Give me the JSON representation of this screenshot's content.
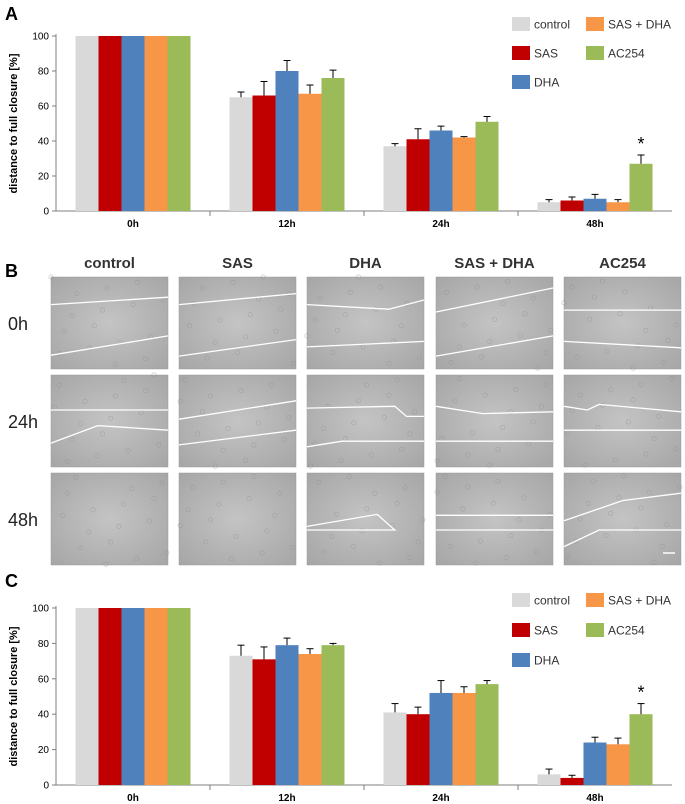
{
  "colors": {
    "control": "#d9d9d9",
    "SAS": "#c00000",
    "DHA": "#4f81bd",
    "SAS + DHA": "#f79646",
    "AC254": "#9bbb59",
    "axis": "#7f7f7f",
    "image_bg": "#b5b5b5",
    "wound_line": "#ffffff"
  },
  "panel_B": {
    "letter": "B",
    "columns": [
      "control",
      "SAS",
      "DHA",
      "SAS + DHA",
      "AC254"
    ],
    "rows": [
      "0h",
      "24h",
      "48h"
    ]
  },
  "chart_data": [
    {
      "panel": "A",
      "type": "bar",
      "ylabel": "distance to full closure [%]",
      "ylim": [
        0,
        100
      ],
      "yticks": [
        0,
        20,
        40,
        60,
        80,
        100
      ],
      "grid": false,
      "legend_placement": "top-right",
      "categories": [
        "0h",
        "12h",
        "24h",
        "48h"
      ],
      "series": [
        {
          "name": "control",
          "values": [
            100,
            65,
            37,
            5
          ],
          "errors": [
            0,
            3,
            1.5,
            1.5
          ]
        },
        {
          "name": "SAS",
          "values": [
            100,
            66,
            41,
            6
          ],
          "errors": [
            0,
            8,
            6,
            2
          ]
        },
        {
          "name": "DHA",
          "values": [
            100,
            80,
            46,
            7
          ],
          "errors": [
            0,
            6,
            2.5,
            2.5
          ]
        },
        {
          "name": "SAS + DHA",
          "values": [
            100,
            67,
            42,
            5
          ],
          "errors": [
            0,
            5,
            0.5,
            1.5
          ]
        },
        {
          "name": "AC254",
          "values": [
            100,
            76,
            51,
            27
          ],
          "errors": [
            0,
            4.5,
            3,
            5
          ]
        }
      ],
      "annotations": [
        {
          "text": "*",
          "category": "48h",
          "series": "AC254"
        }
      ]
    },
    {
      "panel": "C",
      "type": "bar",
      "ylabel": "distance to full closure [%]",
      "ylim": [
        0,
        100
      ],
      "yticks": [
        0,
        20,
        40,
        60,
        80,
        100
      ],
      "grid": false,
      "legend_placement": "top-right",
      "categories": [
        "0h",
        "12h",
        "24h",
        "48h"
      ],
      "series": [
        {
          "name": "control",
          "values": [
            100,
            73,
            41,
            6
          ],
          "errors": [
            0,
            6,
            5,
            3
          ]
        },
        {
          "name": "SAS",
          "values": [
            100,
            71,
            40,
            4
          ],
          "errors": [
            0,
            7,
            4,
            1.5
          ]
        },
        {
          "name": "DHA",
          "values": [
            100,
            79,
            52,
            24
          ],
          "errors": [
            0,
            4,
            7,
            3
          ]
        },
        {
          "name": "SAS + DHA",
          "values": [
            100,
            74,
            52,
            23
          ],
          "errors": [
            0,
            3,
            3.5,
            3.5
          ]
        },
        {
          "name": "AC254",
          "values": [
            100,
            79,
            57,
            40
          ],
          "errors": [
            0,
            1,
            2,
            6
          ]
        }
      ],
      "annotations": [
        {
          "text": "*",
          "category": "48h",
          "series": "AC254"
        }
      ]
    }
  ]
}
